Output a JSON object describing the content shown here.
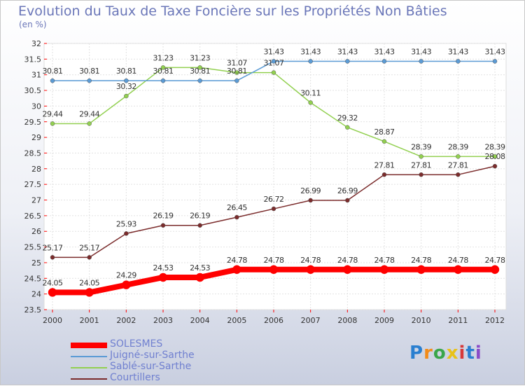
{
  "title": "Evolution du Taux de Taxe Foncière sur les Propriétés Non Bâties",
  "unit": "(en %)",
  "logo": {
    "text": "Proxiti",
    "colors": [
      "#2a7fd0",
      "#f28c1a",
      "#3aa64a",
      "#e8c21a",
      "#d63a3a",
      "#2a7fd0",
      "#8a4cc8"
    ]
  },
  "chart_data": {
    "type": "line",
    "title": "Evolution du Taux de Taxe Foncière sur les Propriétés Non Bâties",
    "ylabel": "(en %)",
    "x": [
      "2000",
      "2001",
      "2002",
      "2003",
      "2004",
      "2005",
      "2006",
      "2007",
      "2008",
      "2009",
      "2010",
      "2011",
      "2012"
    ],
    "ylim": [
      23.5,
      32
    ],
    "yticks": [
      "23.5",
      "24",
      "24.5",
      "25",
      "25.5",
      "26",
      "26.5",
      "27",
      "27.5",
      "28",
      "28.5",
      "29",
      "29.5",
      "30",
      "30.5",
      "31",
      "31.5",
      "32"
    ],
    "grid": true,
    "legend_position": "bottom-left",
    "series": [
      {
        "name": "SOLESMES",
        "color": "#ff0000",
        "width": 8,
        "values": [
          24.05,
          24.05,
          24.29,
          24.53,
          24.53,
          24.78,
          24.78,
          24.78,
          24.78,
          24.78,
          24.78,
          24.78,
          24.78
        ],
        "labels": [
          "24.05",
          "24.05",
          "24.29",
          "24.53",
          "24.53",
          "24.78",
          "24.78",
          "24.78",
          "24.78",
          "24.78",
          "24.78",
          "24.78",
          "24.78"
        ]
      },
      {
        "name": "Juigné-sur-Sarthe",
        "color": "#5b9bd5",
        "width": 1.5,
        "values": [
          30.81,
          30.81,
          30.81,
          30.81,
          30.81,
          30.81,
          31.43,
          31.43,
          31.43,
          31.43,
          31.43,
          31.43,
          31.43
        ],
        "labels": [
          "30.81",
          "30.81",
          "30.81",
          "30.81",
          "30.81",
          "30.81",
          "31.43",
          "31.43",
          "31.43",
          "31.43",
          "31.43",
          "31.43",
          "31.43"
        ]
      },
      {
        "name": "Sablé-sur-Sarthe",
        "color": "#92d050",
        "width": 1.5,
        "values": [
          29.44,
          29.44,
          30.32,
          31.23,
          31.23,
          31.07,
          31.07,
          30.11,
          29.32,
          28.87,
          28.39,
          28.39,
          28.39
        ],
        "labels": [
          "29.44",
          "29.44",
          "30.32",
          "31.23",
          "31.23",
          "31.07",
          "31.07",
          "30.11",
          "29.32",
          "28.87",
          "28.39",
          "28.39",
          "28.39"
        ]
      },
      {
        "name": "Courtillers",
        "color": "#7b2c2c",
        "width": 1.5,
        "values": [
          25.17,
          25.17,
          25.93,
          26.19,
          26.19,
          26.45,
          26.72,
          26.99,
          26.99,
          27.81,
          27.81,
          27.81,
          28.08
        ],
        "labels": [
          "25.17",
          "25.17",
          "25.93",
          "26.19",
          "26.19",
          "26.45",
          "26.72",
          "26.99",
          "26.99",
          "27.81",
          "27.81",
          "27.81",
          "28.08"
        ]
      }
    ]
  }
}
